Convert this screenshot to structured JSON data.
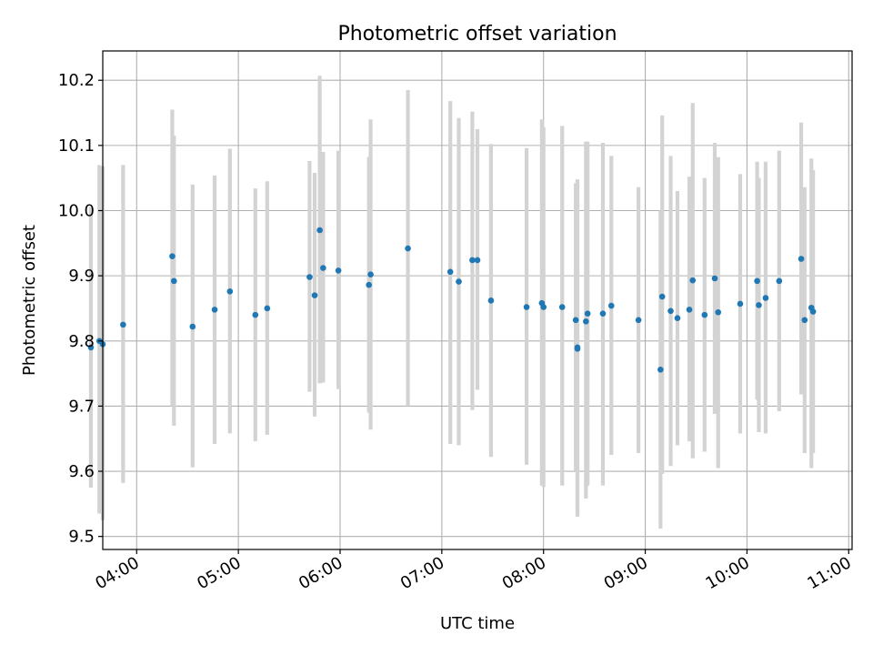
{
  "chart_data": {
    "type": "scatter",
    "title": "Photometric offset variation",
    "xlabel": "UTC time",
    "ylabel": "Photometric offset",
    "xlim": [
      "03:40",
      "11:02"
    ],
    "ylim": [
      9.48,
      10.245
    ],
    "x_ticks": [
      "04:00",
      "05:00",
      "06:00",
      "07:00",
      "08:00",
      "09:00",
      "10:00",
      "11:00"
    ],
    "y_ticks": [
      "9.5",
      "9.6",
      "9.7",
      "9.8",
      "9.9",
      "10.0",
      "10.1",
      "10.2"
    ],
    "grid": true,
    "marker_color": "#1f77b4",
    "errorbar_color": "#d3d3d3",
    "series": [
      {
        "points": [
          {
            "x": "03:33",
            "y": 9.79,
            "lo": 9.575,
            "hi": 10.005
          },
          {
            "x": "03:38",
            "y": 9.8,
            "lo": 9.535,
            "hi": 10.07
          },
          {
            "x": "03:40",
            "y": 9.795,
            "lo": 9.525,
            "hi": 10.068
          },
          {
            "x": "03:52",
            "y": 9.825,
            "lo": 9.582,
            "hi": 10.07
          },
          {
            "x": "04:21",
            "y": 9.93,
            "lo": 9.7,
            "hi": 10.155
          },
          {
            "x": "04:22",
            "y": 9.892,
            "lo": 9.67,
            "hi": 10.115
          },
          {
            "x": "04:33",
            "y": 9.822,
            "lo": 9.606,
            "hi": 10.04
          },
          {
            "x": "04:46",
            "y": 9.848,
            "lo": 9.642,
            "hi": 10.054
          },
          {
            "x": "04:55",
            "y": 9.876,
            "lo": 9.658,
            "hi": 10.095
          },
          {
            "x": "05:10",
            "y": 9.84,
            "lo": 9.646,
            "hi": 10.034
          },
          {
            "x": "05:17",
            "y": 9.85,
            "lo": 9.656,
            "hi": 10.045
          },
          {
            "x": "05:42",
            "y": 9.898,
            "lo": 9.722,
            "hi": 10.076
          },
          {
            "x": "05:45",
            "y": 9.87,
            "lo": 9.684,
            "hi": 10.058
          },
          {
            "x": "05:48",
            "y": 9.97,
            "lo": 9.735,
            "hi": 10.207
          },
          {
            "x": "05:50",
            "y": 9.912,
            "lo": 9.736,
            "hi": 10.09
          },
          {
            "x": "05:59",
            "y": 9.908,
            "lo": 9.726,
            "hi": 10.092
          },
          {
            "x": "06:17",
            "y": 9.886,
            "lo": 9.69,
            "hi": 10.082
          },
          {
            "x": "06:18",
            "y": 9.902,
            "lo": 9.664,
            "hi": 10.14
          },
          {
            "x": "06:40",
            "y": 9.942,
            "lo": 9.7,
            "hi": 10.185
          },
          {
            "x": "07:05",
            "y": 9.906,
            "lo": 9.642,
            "hi": 10.168
          },
          {
            "x": "07:10",
            "y": 9.891,
            "lo": 9.64,
            "hi": 10.142
          },
          {
            "x": "07:18",
            "y": 9.924,
            "lo": 9.694,
            "hi": 10.152
          },
          {
            "x": "07:21",
            "y": 9.924,
            "lo": 9.725,
            "hi": 10.125
          },
          {
            "x": "07:29",
            "y": 9.862,
            "lo": 9.622,
            "hi": 10.102
          },
          {
            "x": "07:50",
            "y": 9.852,
            "lo": 9.61,
            "hi": 10.096
          },
          {
            "x": "07:59",
            "y": 9.858,
            "lo": 9.578,
            "hi": 10.14
          },
          {
            "x": "08:00",
            "y": 9.852,
            "lo": 9.576,
            "hi": 10.128
          },
          {
            "x": "08:11",
            "y": 9.852,
            "lo": 9.578,
            "hi": 10.13
          },
          {
            "x": "08:19",
            "y": 9.832,
            "lo": 9.6,
            "hi": 10.042
          },
          {
            "x": "08:20",
            "y": 9.79,
            "lo": 9.53,
            "hi": 10.048
          },
          {
            "x": "08:20",
            "y": 9.788,
            "lo": 9.535,
            "hi": 10.042
          },
          {
            "x": "08:25",
            "y": 9.83,
            "lo": 9.558,
            "hi": 10.106
          },
          {
            "x": "08:26",
            "y": 9.842,
            "lo": 9.578,
            "hi": 10.106
          },
          {
            "x": "08:35",
            "y": 9.842,
            "lo": 9.578,
            "hi": 10.104
          },
          {
            "x": "08:40",
            "y": 9.854,
            "lo": 9.625,
            "hi": 10.084
          },
          {
            "x": "08:56",
            "y": 9.832,
            "lo": 9.628,
            "hi": 10.036
          },
          {
            "x": "09:09",
            "y": 9.756,
            "lo": 9.512,
            "hi": 10.0
          },
          {
            "x": "09:10",
            "y": 9.868,
            "lo": 9.596,
            "hi": 10.146
          },
          {
            "x": "09:15",
            "y": 9.846,
            "lo": 9.608,
            "hi": 10.084
          },
          {
            "x": "09:19",
            "y": 9.835,
            "lo": 9.64,
            "hi": 10.03
          },
          {
            "x": "09:26",
            "y": 9.848,
            "lo": 9.646,
            "hi": 10.052
          },
          {
            "x": "09:28",
            "y": 9.893,
            "lo": 9.62,
            "hi": 10.165
          },
          {
            "x": "09:35",
            "y": 9.84,
            "lo": 9.63,
            "hi": 10.05
          },
          {
            "x": "09:41",
            "y": 9.896,
            "lo": 9.688,
            "hi": 10.104
          },
          {
            "x": "09:43",
            "y": 9.844,
            "lo": 9.605,
            "hi": 10.082
          },
          {
            "x": "09:56",
            "y": 9.857,
            "lo": 9.658,
            "hi": 10.056
          },
          {
            "x": "10:06",
            "y": 9.892,
            "lo": 9.71,
            "hi": 10.075
          },
          {
            "x": "10:07",
            "y": 9.855,
            "lo": 9.66,
            "hi": 10.05
          },
          {
            "x": "10:11",
            "y": 9.866,
            "lo": 9.658,
            "hi": 10.075
          },
          {
            "x": "10:19",
            "y": 9.892,
            "lo": 9.692,
            "hi": 10.092
          },
          {
            "x": "10:32",
            "y": 9.926,
            "lo": 9.718,
            "hi": 10.135
          },
          {
            "x": "10:34",
            "y": 9.832,
            "lo": 9.628,
            "hi": 10.036
          },
          {
            "x": "10:38",
            "y": 9.851,
            "lo": 9.605,
            "hi": 10.08
          },
          {
            "x": "10:39",
            "y": 9.845,
            "lo": 9.628,
            "hi": 10.062
          }
        ]
      }
    ]
  }
}
